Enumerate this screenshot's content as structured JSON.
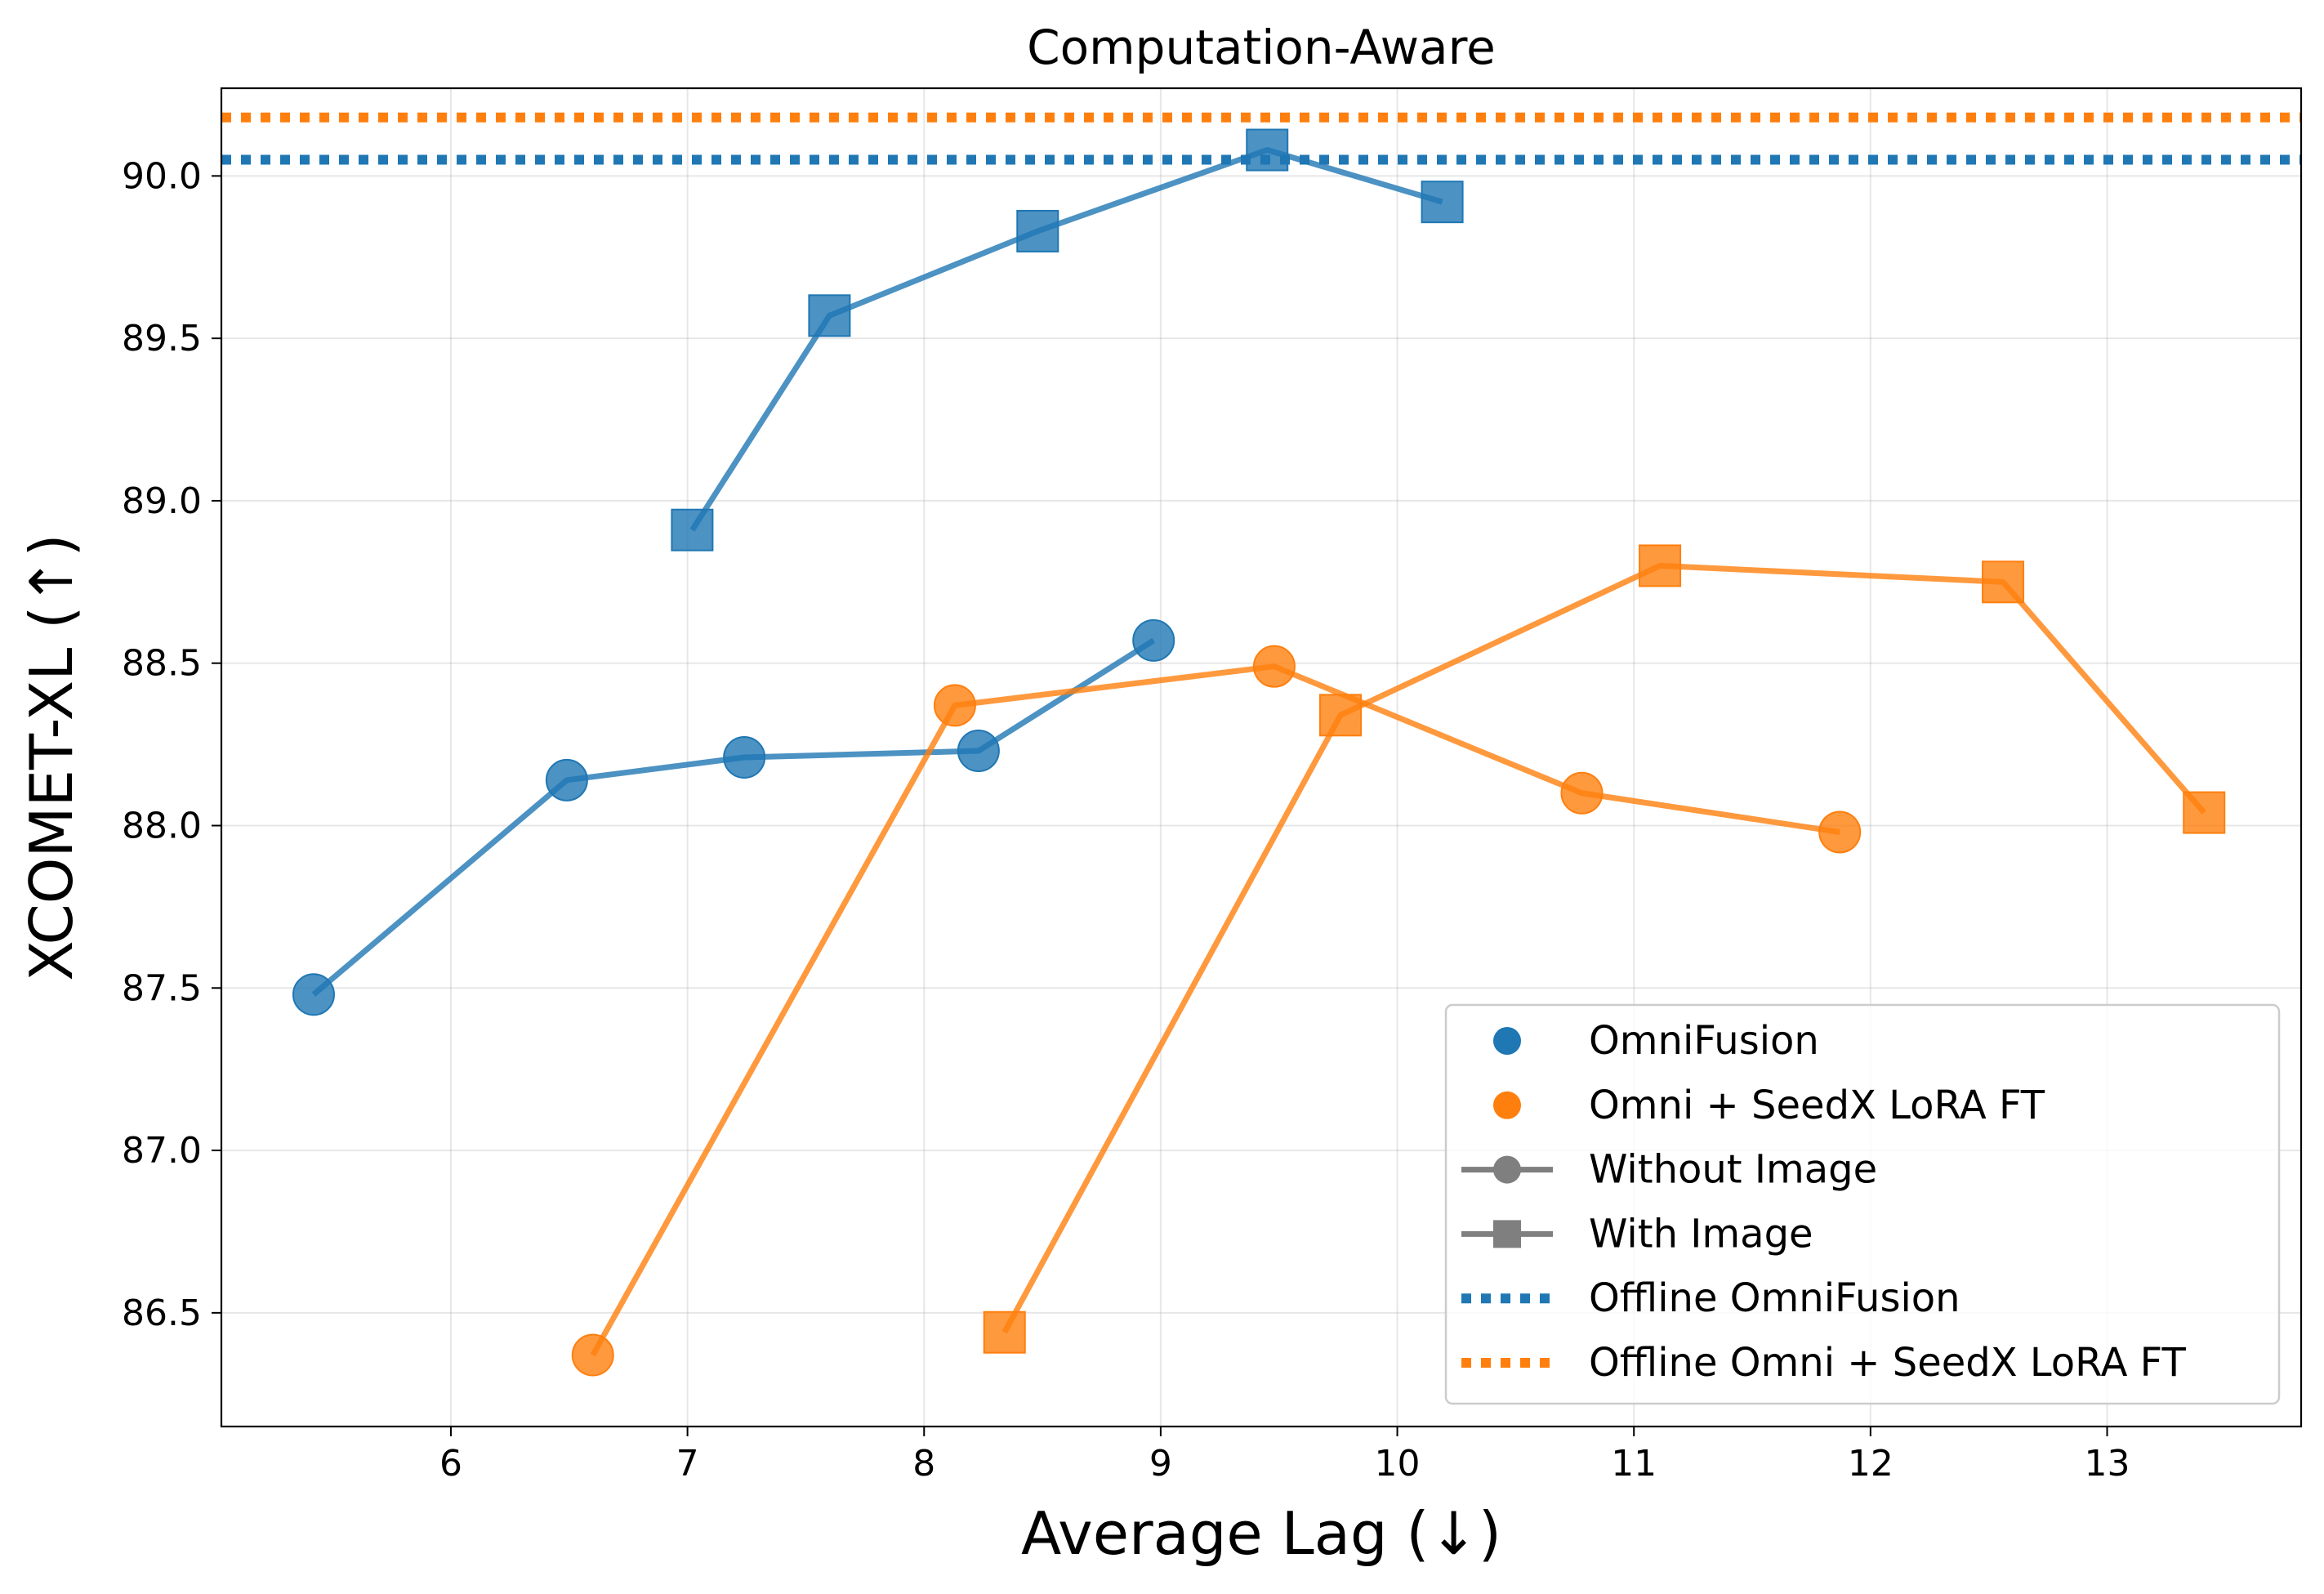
{
  "chart_data": {
    "type": "line",
    "title": "Computation-Aware",
    "xlabel": "Average Lag (↓)",
    "ylabel": "XCOMET-XL (↑)",
    "xlim": [
      5.03,
      13.82
    ],
    "ylim": [
      86.15,
      90.27
    ],
    "xticks": [
      6,
      7,
      8,
      9,
      10,
      11,
      12,
      13
    ],
    "yticks": [
      86.5,
      87.0,
      87.5,
      88.0,
      88.5,
      89.0,
      89.5,
      90.0
    ],
    "grid": true,
    "legend_position": "bottom-right",
    "series": [
      {
        "name": "OmniFusion Without Image",
        "model": "OmniFusion",
        "marker": "circle",
        "color": "#1f77b4",
        "x": [
          5.42,
          6.49,
          7.24,
          8.23,
          8.97
        ],
        "y": [
          87.48,
          88.14,
          88.21,
          88.23,
          88.57
        ]
      },
      {
        "name": "OmniFusion With Image",
        "model": "OmniFusion",
        "marker": "square",
        "color": "#1f77b4",
        "x": [
          7.02,
          7.6,
          8.48,
          9.45,
          10.19
        ],
        "y": [
          88.91,
          89.57,
          89.83,
          90.08,
          89.92
        ]
      },
      {
        "name": "Omni + SeedX LoRA FT Without Image",
        "model": "Omni + SeedX LoRA FT",
        "marker": "circle",
        "color": "#ff7f0e",
        "x": [
          6.6,
          8.13,
          9.48,
          10.78,
          11.87
        ],
        "y": [
          86.37,
          88.37,
          88.49,
          88.1,
          87.98
        ]
      },
      {
        "name": "Omni + SeedX LoRA FT With Image",
        "model": "Omni + SeedX LoRA FT",
        "marker": "square",
        "color": "#ff7f0e",
        "x": [
          8.34,
          9.76,
          11.11,
          12.56,
          13.41
        ],
        "y": [
          86.44,
          88.34,
          88.8,
          88.75,
          88.04
        ]
      }
    ],
    "reference_lines": [
      {
        "name": "Offline OmniFusion",
        "y": 90.05,
        "color": "#1f77b4",
        "style": "dotted"
      },
      {
        "name": "Offline Omni + SeedX LoRA FT",
        "y": 90.18,
        "color": "#ff7f0e",
        "style": "dotted"
      }
    ],
    "legend": [
      {
        "label": "OmniFusion",
        "kind": "dot",
        "color": "#1f77b4"
      },
      {
        "label": "Omni + SeedX LoRA FT",
        "kind": "dot",
        "color": "#ff7f0e"
      },
      {
        "label": "Without Image",
        "kind": "line-circle",
        "color": "#7f7f7f"
      },
      {
        "label": "With Image",
        "kind": "line-square",
        "color": "#7f7f7f"
      },
      {
        "label": "Offline OmniFusion",
        "kind": "dotted",
        "color": "#1f77b4"
      },
      {
        "label": "Offline Omni + SeedX LoRA FT",
        "kind": "dotted",
        "color": "#ff7f0e"
      }
    ]
  }
}
